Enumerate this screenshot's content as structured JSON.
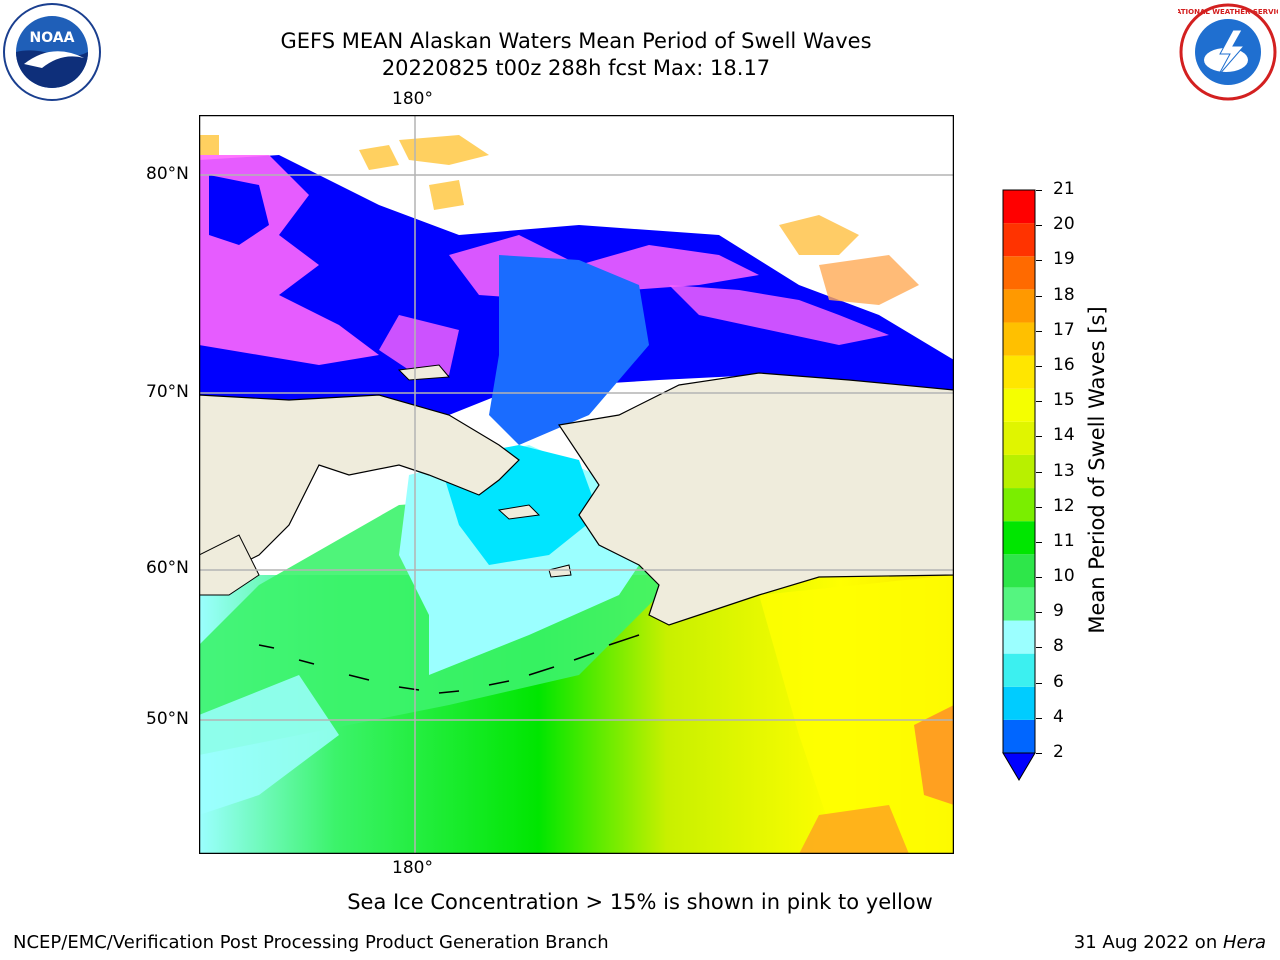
{
  "header": {
    "title_line1": "GEFS MEAN Alaskan Waters Mean Period of Swell Waves",
    "title_line2": "20220825 t00z 288h fcst   Max: 18.17"
  },
  "logos": {
    "left": "noaa-logo",
    "left_text": "NOAA",
    "right": "nws-logo",
    "right_text": "NATIONAL WEATHER SERVICE"
  },
  "map": {
    "top_lon_label": "180°",
    "bottom_lon_label": "180°",
    "lat_labels": [
      "80°N",
      "70°N",
      "60°N",
      "50°N"
    ],
    "land_color": "#efecdc",
    "ocean_colors": [
      "#0000ff",
      "#ff66ff",
      "#00e5ff",
      "#9bffff",
      "#3cf36b",
      "#00e600",
      "#c8f000",
      "#ffff00",
      "#ff9900"
    ]
  },
  "colorbar": {
    "label": "Mean Period of Swell Waves [s]",
    "ticks": [
      "21",
      "20",
      "19",
      "18",
      "17",
      "16",
      "15",
      "14",
      "13",
      "12",
      "11",
      "10",
      "9",
      "8",
      "6",
      "4",
      "2"
    ],
    "colors_bottom_to_top": [
      "#0066ff",
      "#00ccff",
      "#3cf0f0",
      "#9bffff",
      "#55f580",
      "#2ee64a",
      "#00e600",
      "#7aee00",
      "#b8f000",
      "#e0f500",
      "#f5ff00",
      "#ffe600",
      "#ffc000",
      "#ff9900",
      "#ff6a00",
      "#ff3300",
      "#ff0000"
    ],
    "extend_color": "#0000ff"
  },
  "note": "Sea Ice Concentration > 15% is shown in pink to yellow",
  "footer": {
    "left": "NCEP/EMC/Verification Post Processing Product Generation Branch",
    "right_date": "31 Aug 2022 on ",
    "right_host": "Hera"
  }
}
